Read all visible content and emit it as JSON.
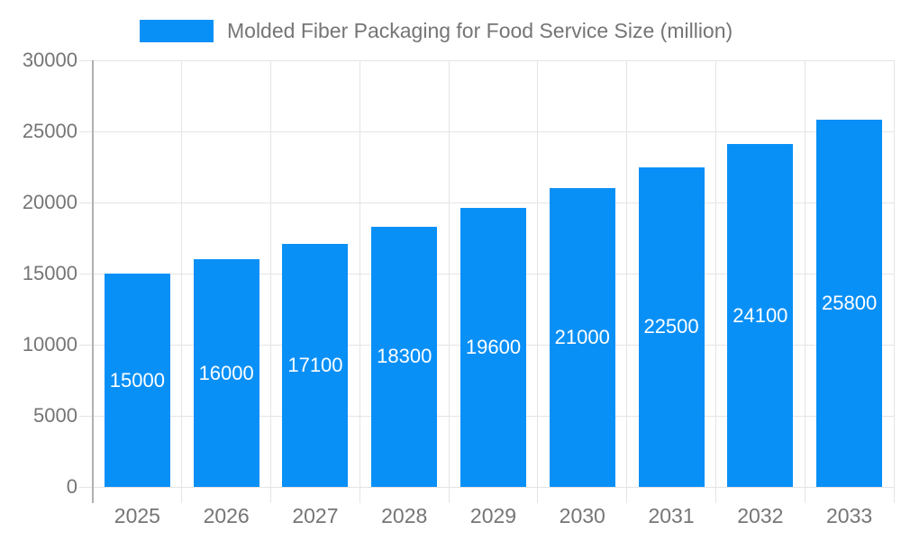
{
  "chart_data": {
    "type": "bar",
    "title": "Molded Fiber Packaging for Food Service Size (million)",
    "legend": [
      "Molded Fiber Packaging for Food Service Size (million)"
    ],
    "legend_position": "top",
    "categories": [
      "2025",
      "2026",
      "2027",
      "2028",
      "2029",
      "2030",
      "2031",
      "2032",
      "2033"
    ],
    "values": [
      15000,
      16000,
      17100,
      18300,
      19600,
      21000,
      22500,
      24100,
      25800
    ],
    "xlabel": "",
    "ylabel": "",
    "ylim": [
      0,
      30000
    ],
    "yticks": [
      0,
      5000,
      10000,
      15000,
      20000,
      25000,
      30000
    ],
    "grid": true,
    "colors": {
      "bar": "#0990f7",
      "bar_value_label": "#ffffff",
      "axis_text": "#757575",
      "grid_line": "#e4e4e4",
      "axis_line": "#b0b0b0",
      "background": "#ffffff"
    }
  }
}
